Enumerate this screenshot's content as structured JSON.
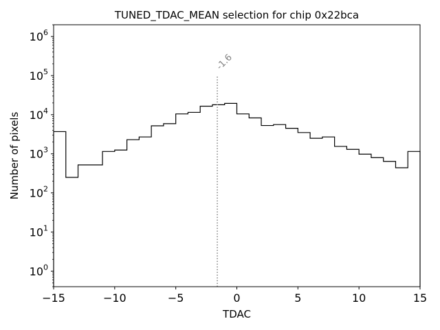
{
  "chart_data": {
    "type": "histogram",
    "title": "TUNED_TDAC_MEAN selection for chip 0x22bca",
    "xlabel": "TDAC",
    "ylabel": "Number of pixels",
    "xlim": [
      -15,
      15
    ],
    "ylim": [
      0.4,
      2000000
    ],
    "yscale": "log",
    "xticks": [
      -15,
      -10,
      -5,
      0,
      5,
      10,
      15
    ],
    "xtick_labels": [
      "−15",
      "−10",
      "−5",
      "0",
      "5",
      "10",
      "15"
    ],
    "yticks": [
      1,
      10,
      100,
      1000,
      10000,
      100000,
      1000000
    ],
    "ytick_labels": [
      "10^0",
      "10^1",
      "10^2",
      "10^3",
      "10^4",
      "10^5",
      "10^6"
    ],
    "grid": false,
    "color": "#000000",
    "bin_edges": [
      -15,
      -14,
      -13,
      -12,
      -11,
      -10,
      -9,
      -8,
      -7,
      -6,
      -5,
      -4,
      -3,
      -2,
      -1,
      0,
      1,
      2,
      3,
      4,
      5,
      6,
      7,
      8,
      9,
      10,
      11,
      12,
      13,
      14,
      15
    ],
    "counts": [
      3700,
      250,
      520,
      520,
      1150,
      1250,
      2300,
      2700,
      5200,
      5900,
      10500,
      11500,
      16500,
      18000,
      19500,
      10500,
      8300,
      5300,
      5600,
      4500,
      3500,
      2500,
      2700,
      1550,
      1300,
      980,
      800,
      640,
      440,
      1150
    ],
    "marker": {
      "x": -1.6,
      "y_top": 100000,
      "label": "-1.6",
      "color": "#808080",
      "style": "dotted"
    }
  }
}
